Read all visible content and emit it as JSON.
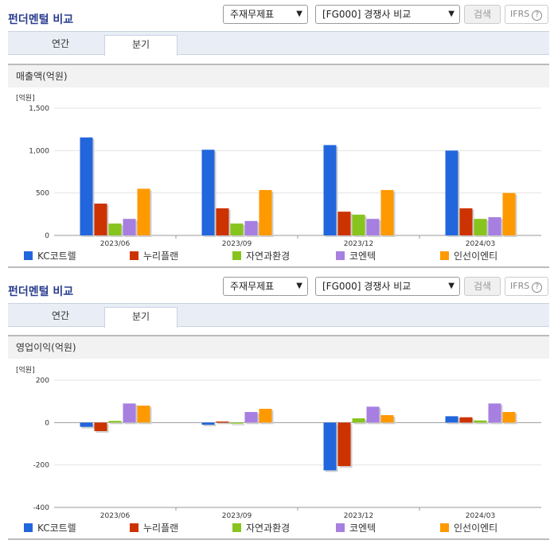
{
  "sections": [
    {
      "title": "펀더멘털 비교",
      "select1": "주재무제표",
      "select2": "[FG000] 경쟁사 비교",
      "search_label": "검색",
      "ifrs_label": "IFRS",
      "ifrs_help": "?",
      "tabs": [
        {
          "label": "연간",
          "active": false
        },
        {
          "label": "분기",
          "active": true
        }
      ],
      "metric": "매출액(억원)"
    },
    {
      "title": "펀더멘털 비교",
      "select1": "주재무제표",
      "select2": "[FG000] 경쟁사 비교",
      "search_label": "검색",
      "ifrs_label": "IFRS",
      "ifrs_help": "?",
      "tabs": [
        {
          "label": "연간",
          "active": false
        },
        {
          "label": "분기",
          "active": true
        }
      ],
      "metric": "영업이익(억원)"
    }
  ],
  "colors": [
    "#2266dd",
    "#cc3300",
    "#88c41e",
    "#a77fe0",
    "#ff9900"
  ],
  "legend": [
    "KC코트렐",
    "누리플랜",
    "자연과환경",
    "코엔텍",
    "인선이엔티"
  ],
  "chart_data": [
    {
      "type": "bar",
      "unit_label": "[억원]",
      "categories": [
        "2023/06",
        "2023/09",
        "2023/12",
        "2024/03"
      ],
      "ylim": [
        0,
        1500
      ],
      "yticks": [
        0,
        500,
        1000,
        1500
      ],
      "ytick_labels": [
        "0",
        "500",
        "1,000",
        "1,500"
      ],
      "grid": true,
      "legend_position": "bottom",
      "series": [
        {
          "name": "KC코트렐",
          "values": [
            1155,
            1010,
            1065,
            1000
          ]
        },
        {
          "name": "누리플랜",
          "values": [
            375,
            320,
            280,
            320
          ]
        },
        {
          "name": "자연과환경",
          "values": [
            140,
            140,
            245,
            195
          ]
        },
        {
          "name": "코엔텍",
          "values": [
            195,
            170,
            195,
            215
          ]
        },
        {
          "name": "인선이엔티",
          "values": [
            550,
            535,
            535,
            500
          ]
        }
      ]
    },
    {
      "type": "bar",
      "unit_label": "[억원]",
      "categories": [
        "2023/06",
        "2023/09",
        "2023/12",
        "2024/03"
      ],
      "ylim": [
        -400,
        200
      ],
      "yticks": [
        -400,
        -200,
        0,
        200
      ],
      "ytick_labels": [
        "-400",
        "-200",
        "0",
        "200"
      ],
      "grid": true,
      "legend_position": "bottom",
      "series": [
        {
          "name": "KC코트렐",
          "values": [
            -20,
            -10,
            -225,
            30
          ]
        },
        {
          "name": "누리플랜",
          "values": [
            -40,
            5,
            -205,
            25
          ]
        },
        {
          "name": "자연과환경",
          "values": [
            8,
            -5,
            20,
            10
          ]
        },
        {
          "name": "코엔텍",
          "values": [
            90,
            50,
            75,
            90
          ]
        },
        {
          "name": "인선이엔티",
          "values": [
            80,
            65,
            35,
            50
          ]
        }
      ]
    }
  ]
}
